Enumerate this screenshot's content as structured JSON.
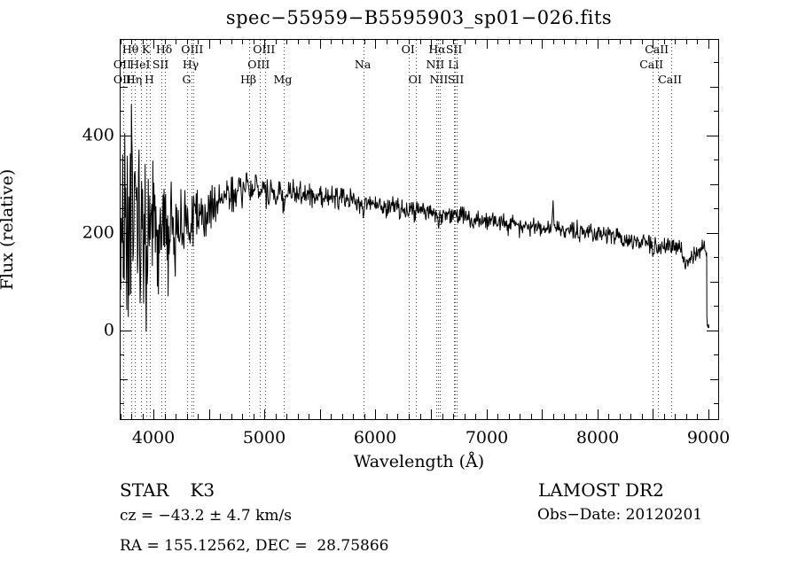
{
  "title": "spec−55959−B5595903_sp01−026.fits",
  "colors": {
    "background": "#ffffff",
    "axis": "#000000",
    "trace": "#000000",
    "line_marker": "#8e2323",
    "text": "#000000"
  },
  "annotations": {
    "class_label": "STAR",
    "subclass": "K3",
    "survey": "LAMOST DR2",
    "cz": "cz = −43.2 ± 4.7 km/s",
    "obs_date": "Obs−Date: 20120201",
    "radec": "RA = 155.12562, DEC =  28.75866"
  },
  "chart_data": {
    "type": "line",
    "title": "spec−55959−B5595903_sp01−026.fits",
    "xlabel": "Wavelength (Å)",
    "ylabel": "Flux (relative)",
    "xlim": [
      3696,
      9088
    ],
    "ylim": [
      -182,
      598
    ],
    "x_ticks": [
      4000,
      5000,
      6000,
      7000,
      8000,
      9000
    ],
    "y_ticks": [
      0,
      200,
      400
    ],
    "x_minor_step": 100,
    "x_major_step": 500,
    "y_minor_step": 50,
    "y_medium_step": 100,
    "grid": "off",
    "trace_color": "#000000",
    "marker_color": "#8e2323",
    "continuum": [
      [
        3700,
        190
      ],
      [
        3720,
        210
      ],
      [
        3760,
        225
      ],
      [
        3800,
        230
      ],
      [
        3850,
        220
      ],
      [
        3900,
        212
      ],
      [
        3950,
        206
      ],
      [
        4000,
        200
      ],
      [
        4050,
        202
      ],
      [
        4100,
        206
      ],
      [
        4150,
        208
      ],
      [
        4250,
        212
      ],
      [
        4350,
        222
      ],
      [
        4450,
        240
      ],
      [
        4550,
        262
      ],
      [
        4650,
        276
      ],
      [
        4750,
        285
      ],
      [
        4850,
        289
      ],
      [
        4950,
        291
      ],
      [
        5050,
        288
      ],
      [
        5150,
        283
      ],
      [
        5250,
        281
      ],
      [
        5350,
        279
      ],
      [
        5450,
        277
      ],
      [
        5550,
        273
      ],
      [
        5650,
        270
      ],
      [
        5750,
        268
      ],
      [
        5850,
        264
      ],
      [
        5950,
        260
      ],
      [
        6050,
        256
      ],
      [
        6150,
        252
      ],
      [
        6250,
        249
      ],
      [
        6350,
        246
      ],
      [
        6450,
        243
      ],
      [
        6563,
        239
      ],
      [
        6650,
        237
      ],
      [
        6750,
        235
      ],
      [
        6850,
        232
      ],
      [
        6950,
        226
      ],
      [
        7050,
        224
      ],
      [
        7150,
        221
      ],
      [
        7250,
        218
      ],
      [
        7350,
        215
      ],
      [
        7450,
        212
      ],
      [
        7550,
        210
      ],
      [
        7650,
        208
      ],
      [
        7750,
        206
      ],
      [
        7850,
        203
      ],
      [
        7950,
        200
      ],
      [
        8050,
        196
      ],
      [
        8150,
        192
      ],
      [
        8250,
        188
      ],
      [
        8350,
        184
      ],
      [
        8450,
        180
      ],
      [
        8550,
        176
      ],
      [
        8650,
        176
      ],
      [
        8750,
        170
      ],
      [
        8820,
        158
      ],
      [
        8870,
        150
      ],
      [
        8920,
        166
      ],
      [
        8960,
        172
      ],
      [
        8982,
        162
      ]
    ],
    "noise_sigma": [
      [
        3700,
        145
      ],
      [
        3750,
        140
      ],
      [
        3800,
        130
      ],
      [
        3850,
        115
      ],
      [
        3900,
        100
      ],
      [
        3950,
        92
      ],
      [
        4000,
        82
      ],
      [
        4100,
        66
      ],
      [
        4200,
        55
      ],
      [
        4300,
        46
      ],
      [
        4400,
        38
      ],
      [
        4500,
        30
      ],
      [
        4600,
        26
      ],
      [
        4700,
        24
      ],
      [
        4800,
        22
      ],
      [
        5000,
        20
      ],
      [
        5200,
        18
      ],
      [
        5500,
        16
      ],
      [
        5800,
        15
      ],
      [
        6100,
        14
      ],
      [
        6400,
        13
      ],
      [
        6700,
        13
      ],
      [
        7000,
        12
      ],
      [
        7300,
        11
      ],
      [
        7600,
        11
      ],
      [
        8000,
        11
      ],
      [
        8300,
        11
      ],
      [
        8600,
        12
      ],
      [
        8800,
        14
      ],
      [
        9000,
        13
      ]
    ],
    "absorption_features": [
      {
        "wavelength": 3933,
        "depth": 55,
        "width": 8
      },
      {
        "wavelength": 3968,
        "depth": 55,
        "width": 8
      },
      {
        "wavelength": 4305,
        "depth": 28,
        "width": 12
      },
      {
        "wavelength": 5175,
        "depth": 24,
        "width": 14
      },
      {
        "wavelength": 5893,
        "depth": 22,
        "width": 10
      },
      {
        "wavelength": 6563,
        "depth": 16,
        "width": 6
      },
      {
        "wavelength": 6870,
        "depth": 18,
        "width": 16
      },
      {
        "wavelength": 7190,
        "depth": 10,
        "width": 14
      },
      {
        "wavelength": 8230,
        "depth": 12,
        "width": 14
      },
      {
        "wavelength": 8498,
        "depth": 18,
        "width": 7
      },
      {
        "wavelength": 8542,
        "depth": 20,
        "width": 7
      },
      {
        "wavelength": 8662,
        "depth": 18,
        "width": 7
      },
      {
        "wavelength": 8790,
        "depth": 26,
        "width": 28
      }
    ],
    "emission_spike": {
      "wavelength": 7600,
      "height": 72,
      "width": 5
    },
    "edge_drop_points": [
      [
        8984,
        160
      ],
      [
        8986,
        30
      ],
      [
        8990,
        10
      ],
      [
        8996,
        7
      ],
      [
        9001,
        13
      ],
      [
        9005,
        5
      ]
    ],
    "spectral_lines": [
      {
        "label": "Hθ",
        "wavelength": 3798,
        "row": 1
      },
      {
        "label": "K",
        "wavelength": 3933,
        "row": 1
      },
      {
        "label": "Hδ",
        "wavelength": 4101,
        "row": 1
      },
      {
        "label": "OIII",
        "wavelength": 4363,
        "row": 1
      },
      {
        "label": "OIII",
        "wavelength": 5007,
        "row": 1
      },
      {
        "label": "OI",
        "wavelength": 6300,
        "row": 1
      },
      {
        "label": "Hα",
        "wavelength": 6563,
        "row": 1
      },
      {
        "label": "SII",
        "wavelength": 6716,
        "row": 1
      },
      {
        "label": "CaII",
        "wavelength": 8542,
        "row": 1
      },
      {
        "label": "OII",
        "wavelength": 3726,
        "row": 2
      },
      {
        "label": "HeI",
        "wavelength": 3889,
        "row": 2
      },
      {
        "label": "SII",
        "wavelength": 4068,
        "row": 2
      },
      {
        "label": "Hγ",
        "wavelength": 4340,
        "row": 2
      },
      {
        "label": "OIII",
        "wavelength": 4959,
        "row": 2
      },
      {
        "label": "Na",
        "wavelength": 5893,
        "row": 2
      },
      {
        "label": "NII",
        "wavelength": 6548,
        "row": 2
      },
      {
        "label": "Li",
        "wavelength": 6707,
        "row": 2
      },
      {
        "label": "CaII",
        "wavelength": 8498,
        "row": 2
      },
      {
        "label": "OII",
        "wavelength": 3729,
        "row": 3
      },
      {
        "label": "Hη",
        "wavelength": 3835,
        "row": 3
      },
      {
        "label": "H",
        "wavelength": 3968,
        "row": 3
      },
      {
        "label": "G",
        "wavelength": 4305,
        "row": 3
      },
      {
        "label": "Hβ",
        "wavelength": 4861,
        "row": 3
      },
      {
        "label": "Mg",
        "wavelength": 5175,
        "row": 3
      },
      {
        "label": "OI",
        "wavelength": 6363,
        "row": 3
      },
      {
        "label": "NII",
        "wavelength": 6583,
        "row": 3
      },
      {
        "label": "SII",
        "wavelength": 6731,
        "row": 3
      },
      {
        "label": "CaII",
        "wavelength": 8662,
        "row": 3
      }
    ]
  }
}
